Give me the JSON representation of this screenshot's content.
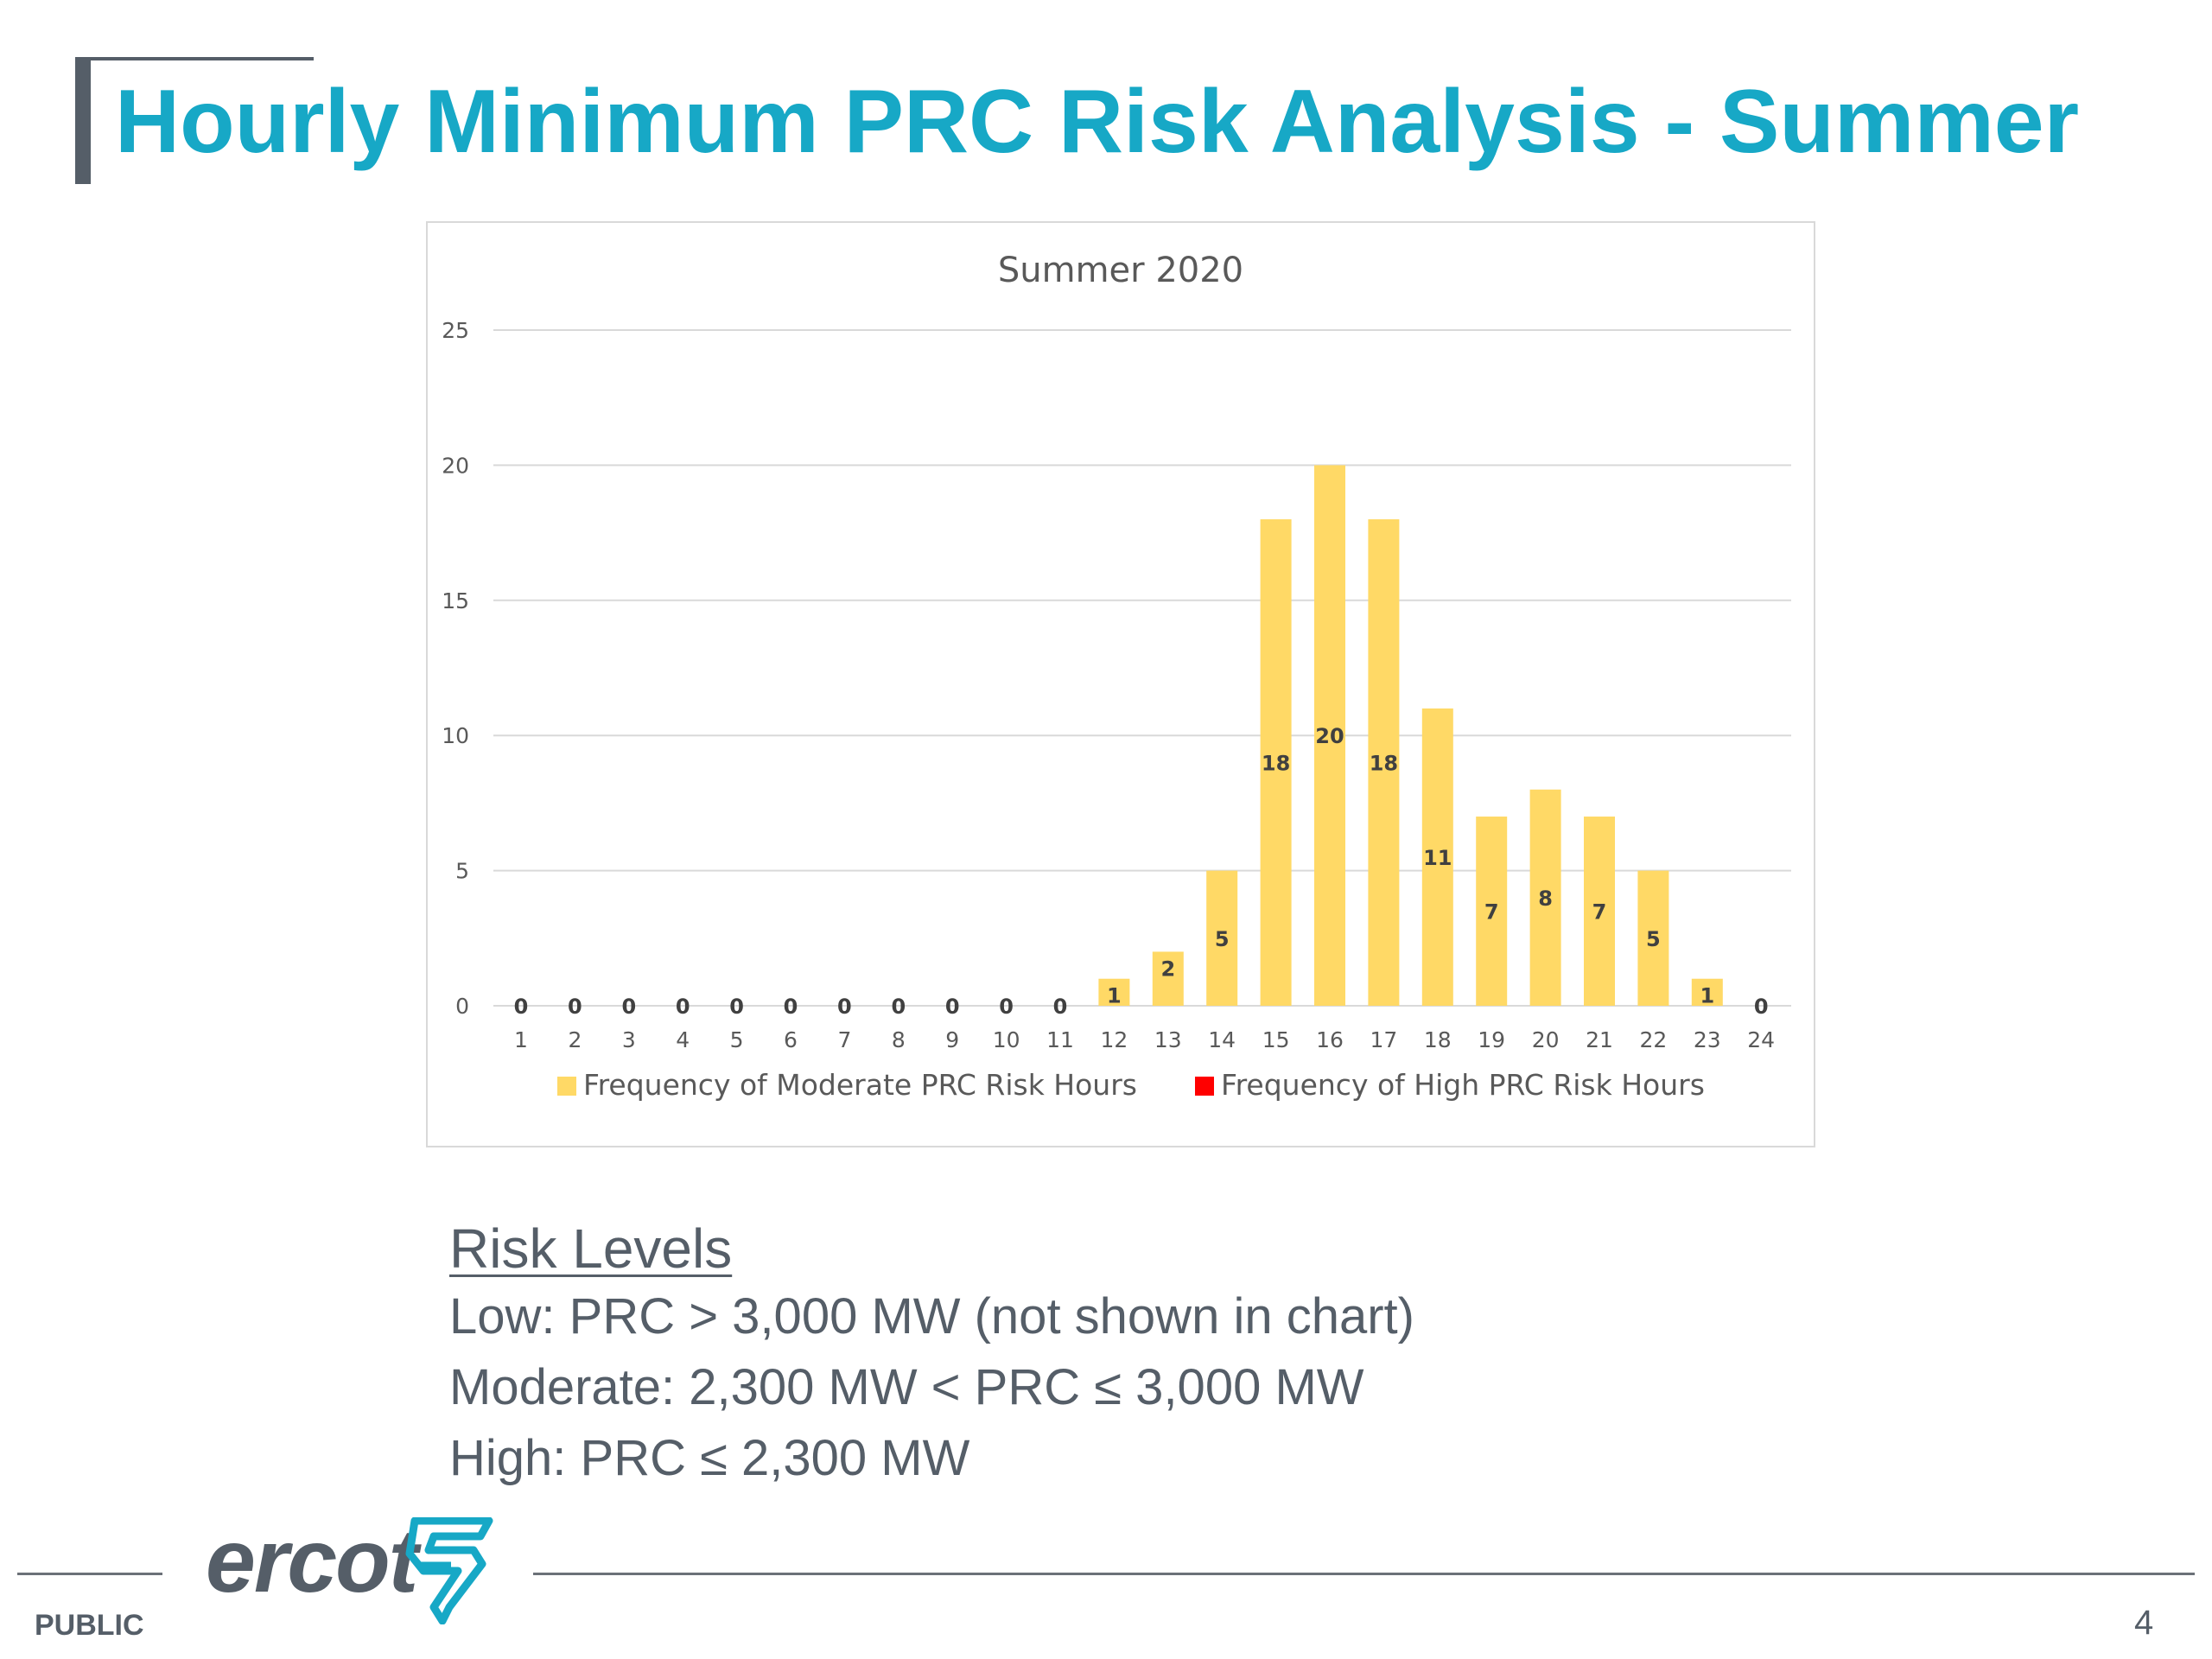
{
  "slide": {
    "title": "Hourly Minimum PRC Risk Analysis - Summer",
    "risk_heading": "Risk Levels",
    "risk_lines": [
      "Low: PRC > 3,000 MW (not shown in chart)",
      "Moderate: 2,300 MW < PRC ≤ 3,000 MW",
      "High: PRC ≤ 2,300 MW"
    ],
    "footer": {
      "public": "PUBLIC",
      "page": "4",
      "logo": "ercot"
    }
  },
  "colors": {
    "title": "#17a8c6",
    "moderate": "#ffd966",
    "high": "#ff0000",
    "text_gray": "#555e68"
  },
  "chart_data": {
    "type": "bar",
    "title": "Summer 2020",
    "xlabel": "",
    "ylabel": "",
    "ylim": [
      0,
      25
    ],
    "yticks": [
      0,
      5,
      10,
      15,
      20,
      25
    ],
    "grid": true,
    "legend_position": "bottom",
    "categories": [
      "1",
      "2",
      "3",
      "4",
      "5",
      "6",
      "7",
      "8",
      "9",
      "10",
      "11",
      "12",
      "13",
      "14",
      "15",
      "16",
      "17",
      "18",
      "19",
      "20",
      "21",
      "22",
      "23",
      "24"
    ],
    "series": [
      {
        "name": "Frequency of Moderate PRC Risk Hours",
        "color": "#ffd966",
        "values": [
          0,
          0,
          0,
          0,
          0,
          0,
          0,
          0,
          0,
          0,
          0,
          1,
          2,
          5,
          18,
          20,
          18,
          11,
          7,
          8,
          7,
          5,
          1,
          0
        ]
      },
      {
        "name": "Frequency of High PRC Risk Hours",
        "color": "#ff0000",
        "values": [
          0,
          0,
          0,
          0,
          0,
          0,
          0,
          0,
          0,
          0,
          0,
          0,
          0,
          0,
          0,
          0,
          0,
          0,
          0,
          0,
          0,
          0,
          0,
          0
        ]
      }
    ]
  }
}
